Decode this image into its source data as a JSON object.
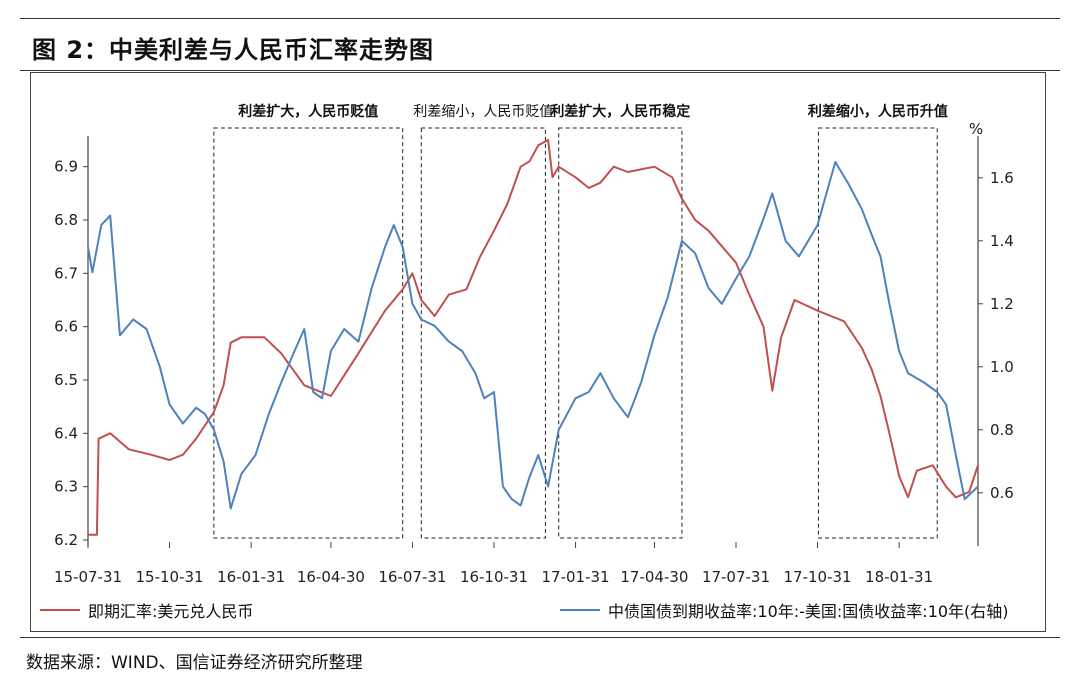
{
  "header": {
    "title": "图 2：中美利差与人民币汇率走势图"
  },
  "footer": {
    "source": "数据来源：WIND、国信证券经济研究所整理"
  },
  "chart_data": {
    "type": "line",
    "x_tick_labels": [
      "15-07-31",
      "15-10-31",
      "16-01-31",
      "16-04-30",
      "16-07-31",
      "16-10-31",
      "17-01-31",
      "17-04-30",
      "17-07-31",
      "17-10-31",
      "18-01-31"
    ],
    "x_range": [
      "2015-07-31",
      "2018-04-30"
    ],
    "left_axis": {
      "ylim": [
        6.2,
        6.95
      ],
      "ticks": [
        "6.2",
        "6.3",
        "6.4",
        "6.5",
        "6.6",
        "6.7",
        "6.8",
        "6.9"
      ]
    },
    "right_axis": {
      "unit": "%",
      "ylim": [
        0.45,
        1.72
      ],
      "ticks": [
        "0.6",
        "0.8",
        "1.0",
        "1.2",
        "1.4",
        "1.6"
      ]
    },
    "annotations": [
      {
        "text": "利差扩大，人民币贬值",
        "bold": true,
        "start": "2015-12-20",
        "end": "2016-07-20"
      },
      {
        "text": "利差缩小，人民币贬值",
        "bold": false,
        "start": "2016-08-10",
        "end": "2016-12-28"
      },
      {
        "text": "利差扩大，人民币稳定",
        "bold": true,
        "start": "2017-01-12",
        "end": "2017-05-31"
      },
      {
        "text": "利差缩小，人民币升值",
        "bold": true,
        "start": "2017-11-01",
        "end": "2018-03-15"
      }
    ],
    "legend_position": "bottom",
    "series": [
      {
        "name": "即期汇率:美元兑人民币",
        "axis": "left",
        "color": "#C0504D",
        "points": [
          [
            "2015-07-31",
            6.21
          ],
          [
            "2015-08-10",
            6.21
          ],
          [
            "2015-08-12",
            6.39
          ],
          [
            "2015-08-25",
            6.4
          ],
          [
            "2015-09-15",
            6.37
          ],
          [
            "2015-10-10",
            6.36
          ],
          [
            "2015-10-31",
            6.35
          ],
          [
            "2015-11-15",
            6.36
          ],
          [
            "2015-11-30",
            6.39
          ],
          [
            "2015-12-20",
            6.44
          ],
          [
            "2015-12-31",
            6.49
          ],
          [
            "2016-01-08",
            6.57
          ],
          [
            "2016-01-20",
            6.58
          ],
          [
            "2016-02-15",
            6.58
          ],
          [
            "2016-03-05",
            6.55
          ],
          [
            "2016-03-31",
            6.49
          ],
          [
            "2016-04-15",
            6.48
          ],
          [
            "2016-04-30",
            6.47
          ],
          [
            "2016-05-31",
            6.55
          ],
          [
            "2016-06-30",
            6.63
          ],
          [
            "2016-07-20",
            6.67
          ],
          [
            "2016-07-31",
            6.7
          ],
          [
            "2016-08-10",
            6.65
          ],
          [
            "2016-08-25",
            6.62
          ],
          [
            "2016-09-10",
            6.66
          ],
          [
            "2016-09-30",
            6.67
          ],
          [
            "2016-10-15",
            6.73
          ],
          [
            "2016-10-31",
            6.78
          ],
          [
            "2016-11-15",
            6.83
          ],
          [
            "2016-11-30",
            6.9
          ],
          [
            "2016-12-10",
            6.91
          ],
          [
            "2016-12-20",
            6.94
          ],
          [
            "2016-12-31",
            6.95
          ],
          [
            "2017-01-05",
            6.88
          ],
          [
            "2017-01-12",
            6.9
          ],
          [
            "2017-01-31",
            6.88
          ],
          [
            "2017-02-15",
            6.86
          ],
          [
            "2017-02-28",
            6.87
          ],
          [
            "2017-03-15",
            6.9
          ],
          [
            "2017-03-31",
            6.89
          ],
          [
            "2017-04-30",
            6.9
          ],
          [
            "2017-05-20",
            6.88
          ],
          [
            "2017-05-31",
            6.84
          ],
          [
            "2017-06-15",
            6.8
          ],
          [
            "2017-06-30",
            6.78
          ],
          [
            "2017-07-31",
            6.72
          ],
          [
            "2017-08-15",
            6.66
          ],
          [
            "2017-08-31",
            6.6
          ],
          [
            "2017-09-10",
            6.48
          ],
          [
            "2017-09-20",
            6.58
          ],
          [
            "2017-10-05",
            6.65
          ],
          [
            "2017-10-31",
            6.63
          ],
          [
            "2017-11-15",
            6.62
          ],
          [
            "2017-11-30",
            6.61
          ],
          [
            "2017-12-20",
            6.56
          ],
          [
            "2017-12-31",
            6.52
          ],
          [
            "2018-01-10",
            6.47
          ],
          [
            "2018-01-20",
            6.4
          ],
          [
            "2018-01-31",
            6.32
          ],
          [
            "2018-02-10",
            6.28
          ],
          [
            "2018-02-20",
            6.33
          ],
          [
            "2018-03-10",
            6.34
          ],
          [
            "2018-03-25",
            6.3
          ],
          [
            "2018-04-05",
            6.28
          ],
          [
            "2018-04-20",
            6.29
          ],
          [
            "2018-04-30",
            6.34
          ]
        ]
      },
      {
        "name": "中债国债到期收益率:10年:-美国:国债收益率:10年(右轴)",
        "axis": "right",
        "color": "#4F81BD",
        "points": [
          [
            "2015-07-31",
            1.38
          ],
          [
            "2015-08-05",
            1.3
          ],
          [
            "2015-08-15",
            1.45
          ],
          [
            "2015-08-25",
            1.48
          ],
          [
            "2015-09-05",
            1.1
          ],
          [
            "2015-09-20",
            1.15
          ],
          [
            "2015-10-05",
            1.12
          ],
          [
            "2015-10-20",
            1.0
          ],
          [
            "2015-10-31",
            0.88
          ],
          [
            "2015-11-15",
            0.82
          ],
          [
            "2015-11-30",
            0.87
          ],
          [
            "2015-12-10",
            0.85
          ],
          [
            "2015-12-20",
            0.8
          ],
          [
            "2015-12-31",
            0.7
          ],
          [
            "2016-01-08",
            0.55
          ],
          [
            "2016-01-20",
            0.66
          ],
          [
            "2016-02-05",
            0.72
          ],
          [
            "2016-02-20",
            0.85
          ],
          [
            "2016-03-05",
            0.95
          ],
          [
            "2016-03-20",
            1.05
          ],
          [
            "2016-03-31",
            1.12
          ],
          [
            "2016-04-10",
            0.92
          ],
          [
            "2016-04-20",
            0.9
          ],
          [
            "2016-04-30",
            1.05
          ],
          [
            "2016-05-15",
            1.12
          ],
          [
            "2016-05-31",
            1.08
          ],
          [
            "2016-06-15",
            1.25
          ],
          [
            "2016-06-30",
            1.38
          ],
          [
            "2016-07-10",
            1.45
          ],
          [
            "2016-07-20",
            1.38
          ],
          [
            "2016-07-31",
            1.2
          ],
          [
            "2016-08-10",
            1.15
          ],
          [
            "2016-08-25",
            1.13
          ],
          [
            "2016-09-10",
            1.08
          ],
          [
            "2016-09-25",
            1.05
          ],
          [
            "2016-10-10",
            0.98
          ],
          [
            "2016-10-20",
            0.9
          ],
          [
            "2016-10-31",
            0.92
          ],
          [
            "2016-11-10",
            0.62
          ],
          [
            "2016-11-20",
            0.58
          ],
          [
            "2016-11-30",
            0.56
          ],
          [
            "2016-12-10",
            0.65
          ],
          [
            "2016-12-20",
            0.72
          ],
          [
            "2016-12-31",
            0.62
          ],
          [
            "2017-01-12",
            0.8
          ],
          [
            "2017-01-31",
            0.9
          ],
          [
            "2017-02-15",
            0.92
          ],
          [
            "2017-02-28",
            0.98
          ],
          [
            "2017-03-15",
            0.9
          ],
          [
            "2017-03-31",
            0.84
          ],
          [
            "2017-04-15",
            0.95
          ],
          [
            "2017-04-30",
            1.1
          ],
          [
            "2017-05-15",
            1.22
          ],
          [
            "2017-05-31",
            1.4
          ],
          [
            "2017-06-15",
            1.36
          ],
          [
            "2017-06-30",
            1.25
          ],
          [
            "2017-07-15",
            1.2
          ],
          [
            "2017-07-31",
            1.28
          ],
          [
            "2017-08-15",
            1.35
          ],
          [
            "2017-08-31",
            1.47
          ],
          [
            "2017-09-10",
            1.55
          ],
          [
            "2017-09-25",
            1.4
          ],
          [
            "2017-10-10",
            1.35
          ],
          [
            "2017-10-31",
            1.45
          ],
          [
            "2017-11-10",
            1.55
          ],
          [
            "2017-11-20",
            1.65
          ],
          [
            "2017-12-05",
            1.58
          ],
          [
            "2017-12-20",
            1.5
          ],
          [
            "2017-12-31",
            1.42
          ],
          [
            "2018-01-10",
            1.35
          ],
          [
            "2018-01-20",
            1.2
          ],
          [
            "2018-01-31",
            1.05
          ],
          [
            "2018-02-10",
            0.98
          ],
          [
            "2018-02-28",
            0.95
          ],
          [
            "2018-03-15",
            0.92
          ],
          [
            "2018-03-25",
            0.88
          ],
          [
            "2018-04-05",
            0.72
          ],
          [
            "2018-04-15",
            0.58
          ],
          [
            "2018-04-30",
            0.62
          ]
        ]
      }
    ]
  }
}
